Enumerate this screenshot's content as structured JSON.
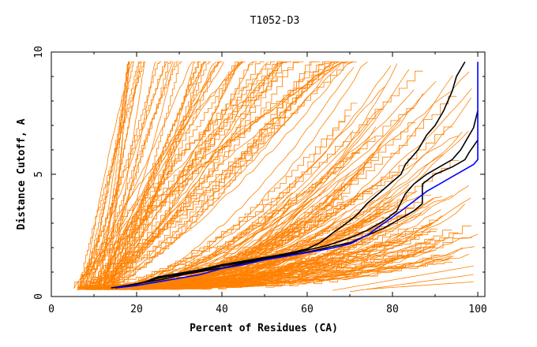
{
  "chart_data": {
    "type": "line",
    "title": "T1052-D3",
    "xlabel": "Percent of Residues (CA)",
    "ylabel": "Distance Cutoff, A",
    "xlim": [
      0,
      100
    ],
    "ylim": [
      0,
      10
    ],
    "x_ticks": [
      0,
      20,
      40,
      60,
      80,
      100
    ],
    "y_ticks": [
      0,
      5,
      10
    ],
    "grid": false,
    "legend": "none",
    "colors": {
      "models": "#ff8000",
      "highlight": "#000000",
      "best": "#0000ff"
    },
    "highlight_series": [
      {
        "points": [
          [
            14,
            0.35
          ],
          [
            18,
            0.45
          ],
          [
            22,
            0.6
          ],
          [
            25,
            0.8
          ],
          [
            30,
            0.95
          ],
          [
            35,
            1.1
          ],
          [
            40,
            1.3
          ],
          [
            45,
            1.45
          ],
          [
            50,
            1.6
          ],
          [
            55,
            1.75
          ],
          [
            60,
            1.95
          ],
          [
            63,
            2.2
          ],
          [
            66,
            2.6
          ],
          [
            70,
            3.1
          ],
          [
            72,
            3.4
          ],
          [
            74,
            3.8
          ],
          [
            78,
            4.4
          ],
          [
            82,
            5.0
          ],
          [
            83,
            5.4
          ],
          [
            86,
            6.0
          ],
          [
            88,
            6.6
          ],
          [
            90,
            7.0
          ],
          [
            92,
            7.6
          ],
          [
            94,
            8.4
          ],
          [
            95,
            9.0
          ],
          [
            97,
            9.6
          ]
        ]
      },
      {
        "points": [
          [
            15,
            0.35
          ],
          [
            20,
            0.5
          ],
          [
            25,
            0.75
          ],
          [
            30,
            0.9
          ],
          [
            35,
            1.05
          ],
          [
            40,
            1.25
          ],
          [
            45,
            1.4
          ],
          [
            50,
            1.55
          ],
          [
            55,
            1.7
          ],
          [
            60,
            1.9
          ],
          [
            65,
            2.1
          ],
          [
            70,
            2.4
          ],
          [
            74,
            2.7
          ],
          [
            78,
            3.1
          ],
          [
            81,
            3.5
          ],
          [
            83,
            4.2
          ],
          [
            85,
            4.6
          ],
          [
            88,
            5.0
          ],
          [
            91,
            5.3
          ],
          [
            94,
            5.6
          ],
          [
            96,
            6.0
          ],
          [
            97,
            6.3
          ],
          [
            98,
            6.6
          ],
          [
            99,
            6.9
          ],
          [
            100,
            7.6
          ]
        ]
      },
      {
        "points": [
          [
            16,
            0.4
          ],
          [
            21,
            0.55
          ],
          [
            26,
            0.7
          ],
          [
            31,
            0.9
          ],
          [
            36,
            1.05
          ],
          [
            41,
            1.2
          ],
          [
            46,
            1.4
          ],
          [
            51,
            1.55
          ],
          [
            56,
            1.7
          ],
          [
            61,
            1.85
          ],
          [
            66,
            2.05
          ],
          [
            70,
            2.2
          ],
          [
            74,
            2.5
          ],
          [
            78,
            2.8
          ],
          [
            82,
            3.2
          ],
          [
            85,
            3.5
          ],
          [
            87,
            3.8
          ],
          [
            87,
            4.6
          ],
          [
            90,
            5.0
          ],
          [
            94,
            5.3
          ],
          [
            97,
            5.6
          ],
          [
            98,
            5.9
          ],
          [
            100,
            6.4
          ]
        ]
      }
    ],
    "best_series": {
      "points": [
        [
          15,
          0.35
        ],
        [
          20,
          0.45
        ],
        [
          25,
          0.6
        ],
        [
          30,
          0.75
        ],
        [
          35,
          0.9
        ],
        [
          40,
          1.15
        ],
        [
          45,
          1.3
        ],
        [
          50,
          1.5
        ],
        [
          55,
          1.65
        ],
        [
          60,
          1.8
        ],
        [
          65,
          1.95
        ],
        [
          70,
          2.15
        ],
        [
          74,
          2.5
        ],
        [
          78,
          3.0
        ],
        [
          82,
          3.5
        ],
        [
          85,
          3.9
        ],
        [
          88,
          4.3
        ],
        [
          91,
          4.6
        ],
        [
          94,
          4.9
        ],
        [
          97,
          5.2
        ],
        [
          99,
          5.4
        ],
        [
          100,
          5.6
        ],
        [
          100,
          9.6
        ]
      ]
    }
  }
}
